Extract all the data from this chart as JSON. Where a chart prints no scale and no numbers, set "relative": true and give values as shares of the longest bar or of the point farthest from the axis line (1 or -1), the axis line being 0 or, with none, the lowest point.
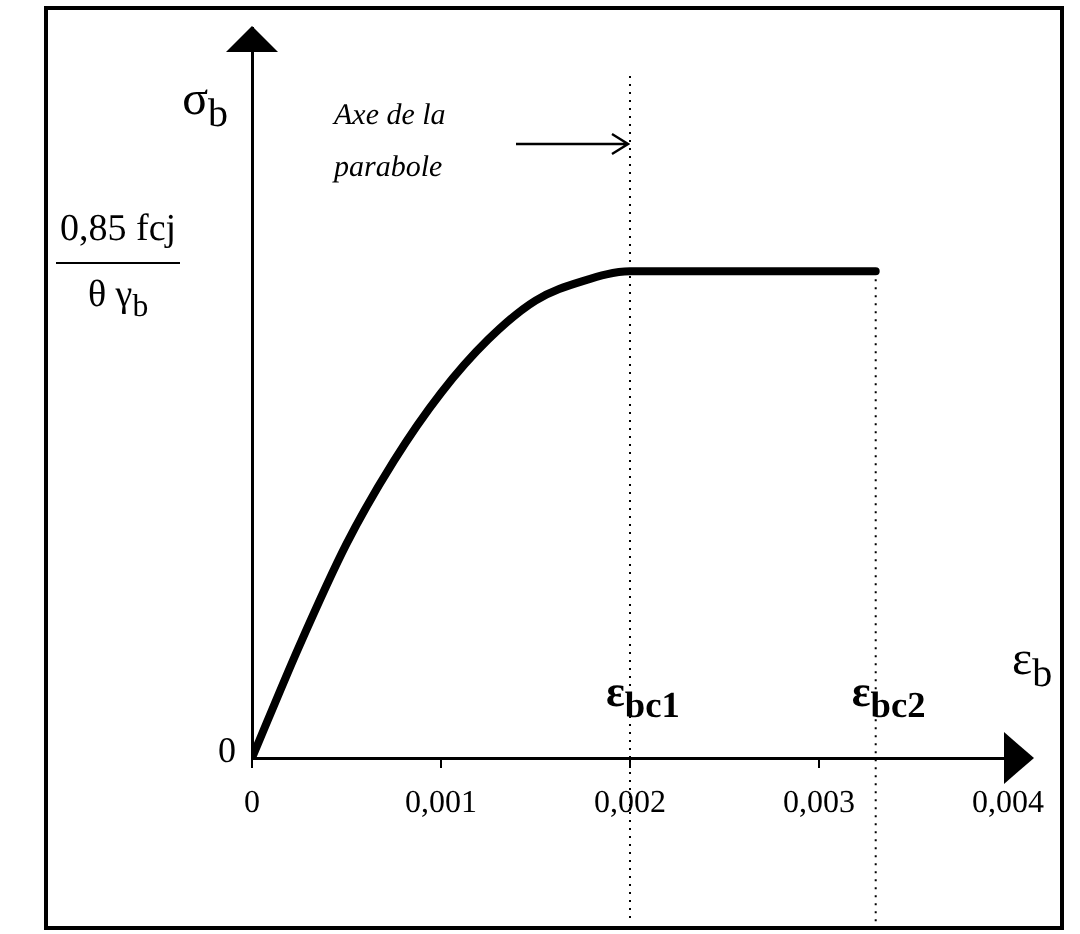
{
  "chart_data": {
    "type": "line",
    "relative": true,
    "xlabel": "ε$_{b}$",
    "ylabel": "σ$_{b}$",
    "x": [
      0,
      0.00025,
      0.0005,
      0.00075,
      0.001,
      0.00125,
      0.0015,
      0.00175,
      0.002,
      0.0033
    ],
    "series": [
      {
        "color": "#000000",
        "values": [
          0,
          0.23,
          0.44,
          0.61,
          0.75,
          0.86,
          0.94,
          0.98,
          1,
          1
        ]
      }
    ],
    "xlim": [
      0,
      0.004
    ],
    "xticks": [
      0,
      {
        "value": 0.001,
        "label": "0,001"
      },
      {
        "value": 0.002,
        "label": "0,002"
      },
      {
        "value": 0.003,
        "label": "0,003"
      },
      {
        "value": 0.004,
        "label": "0,004"
      }
    ],
    "ref_lines": [
      {
        "axis": "x",
        "value": 0.002,
        "label": "ε$_{bc1}$",
        "line_style": "dotted",
        "color": "#000000"
      },
      {
        "axis": "x",
        "value": 0.0033,
        "label": "ε$_{bc2}$",
        "line_style": "dotted",
        "color": "#000000"
      }
    ],
    "annotations": [
      "Axe de la parabole",
      "0",
      "0,85 fcj",
      "θ γ$_{b}$"
    ],
    "grid": false,
    "legend": false,
    "marker": "none",
    "line_style": "solid"
  }
}
